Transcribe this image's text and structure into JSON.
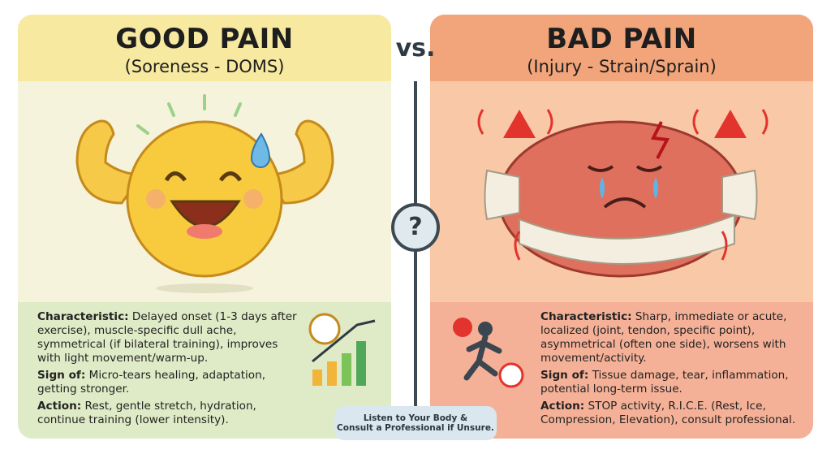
{
  "vs": "vs.",
  "question": "?",
  "left": {
    "title": "GOOD PAIN",
    "subtitle": "(Soreness - DOMS)",
    "items": [
      {
        "label": "Characteristic:",
        "text": "Delayed onset (1-3 days after exercise), muscle-specific dull ache, symmetrical (if bilateral training), improves with light movement/warm-up."
      },
      {
        "label": "Sign of:",
        "text": "Micro-tears healing, adaptation, getting stronger."
      },
      {
        "label": "Action:",
        "text": "Rest, gentle stretch, hydration, continue training (lower intensity)."
      }
    ]
  },
  "right": {
    "title": "BAD PAIN",
    "subtitle": "(Injury - Strain/Sprain)",
    "items": [
      {
        "label": "Characteristic:",
        "text": "Sharp, immediate or acute, localized (joint, tendon, specific point), asymmetrical (often one side), worsens with movement/activity."
      },
      {
        "label": "Sign of:",
        "text": "Tissue damage, tear, inflammation, potential long-term issue."
      },
      {
        "label": "Action:",
        "text": "STOP activity, R.I.C.E. (Rest, Ice, Compression, Elevation), consult professional."
      }
    ]
  },
  "note": {
    "lines": [
      "Listen to Your Body &",
      "Consult a Professional if Unsure."
    ]
  }
}
